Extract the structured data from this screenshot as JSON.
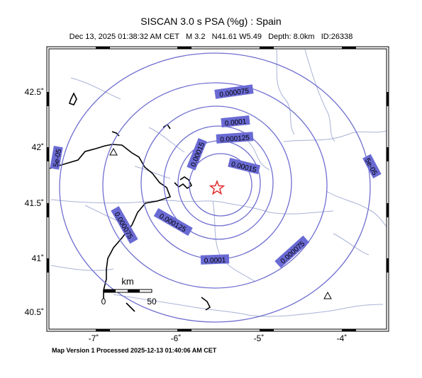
{
  "title": "SISCAN 3.0 s PSA (%g) : Spain",
  "subtitle": "Dec 13, 2025 01:38:32 AM CET   M 3.2   N41.61 W5.49   Depth: 8.0km   ID:26338",
  "footer": "Map Version 1 Processed 2025-12-13 01:40:06 AM CET",
  "colors": {
    "contour": "#6f6fd0",
    "label_bg": "#6a6ad4",
    "rivers": "#a9b3d6",
    "coast": "#000000",
    "epicenter": "#e02020"
  },
  "axes": {
    "lat_ticks": [
      "42.5˚",
      "42˚",
      "41.5˚",
      "41˚",
      "40.5˚"
    ],
    "lon_ticks": [
      "-7˚",
      "-6˚",
      "-5˚",
      "-4˚"
    ]
  },
  "scale_bar": {
    "unit": "km",
    "start": "0",
    "end": "50"
  },
  "contour_labels": [
    "0.000075",
    "0.0001",
    "0.000125",
    "0.00015",
    "0.00015",
    "5e-05",
    "5e-05",
    "0.000075",
    "0.000125",
    "0.0001",
    "0.000075"
  ],
  "map": {
    "icon": "star-icon",
    "stations": [
      "triangle-icon",
      "triangle-icon"
    ]
  }
}
